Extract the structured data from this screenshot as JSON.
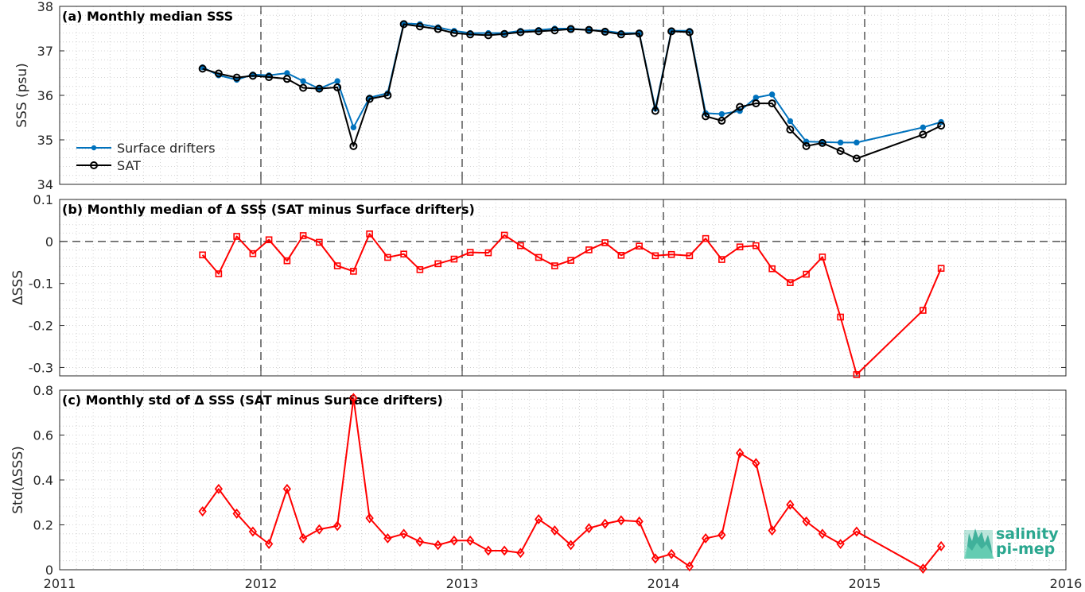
{
  "chart_data": [
    {
      "type": "line",
      "title": "(a) Monthly median SSS",
      "xlabel": "",
      "ylabel": "SSS (psu)",
      "xlim": [
        2011,
        2016
      ],
      "ylim": [
        34,
        38
      ],
      "yticks": [
        "34",
        "35",
        "36",
        "37",
        "38"
      ],
      "xticks": [
        "2011",
        "2012",
        "2013",
        "2014",
        "2015",
        "2016"
      ],
      "grid": "minor-dotted",
      "year_lines": [
        2012,
        2013,
        2014,
        2015
      ],
      "legend_position": "bottom-left",
      "series": [
        {
          "name": "Surface drifters",
          "color": "#0072BD",
          "marker": "dot",
          "x": [
            2011.71,
            2011.79,
            2011.88,
            2011.96,
            2012.04,
            2012.13,
            2012.21,
            2012.29,
            2012.38,
            2012.46,
            2012.54,
            2012.63,
            2012.71,
            2012.79,
            2012.88,
            2012.96,
            2013.04,
            2013.13,
            2013.21,
            2013.29,
            2013.38,
            2013.46,
            2013.54,
            2013.63,
            2013.71,
            2013.79,
            2013.88,
            2013.96,
            2014.04,
            2014.13,
            2014.21,
            2014.29,
            2014.38,
            2014.46,
            2014.54,
            2014.63,
            2014.71,
            2014.79,
            2014.88,
            2014.96,
            2015.29,
            2015.38
          ],
          "y": [
            36.63,
            36.45,
            36.35,
            36.47,
            36.45,
            36.5,
            36.32,
            36.15,
            36.32,
            35.28,
            35.95,
            36.05,
            37.62,
            37.6,
            37.53,
            37.45,
            37.4,
            37.4,
            37.4,
            37.45,
            37.47,
            37.5,
            37.5,
            37.47,
            37.45,
            37.4,
            37.4,
            35.7,
            37.45,
            37.45,
            35.6,
            35.58,
            35.65,
            35.95,
            36.02,
            35.42,
            34.96,
            34.95,
            34.94,
            34.94,
            35.28,
            35.4
          ],
          "gaps_after_index": [
            39
          ]
        },
        {
          "name": "SAT",
          "color": "#000000",
          "marker": "circle",
          "x": [
            2011.71,
            2011.79,
            2011.88,
            2011.96,
            2012.04,
            2012.13,
            2012.21,
            2012.29,
            2012.38,
            2012.46,
            2012.54,
            2012.63,
            2012.71,
            2012.79,
            2012.88,
            2012.96,
            2013.04,
            2013.13,
            2013.21,
            2013.29,
            2013.38,
            2013.46,
            2013.54,
            2013.63,
            2013.71,
            2013.79,
            2013.88,
            2013.96,
            2014.04,
            2014.13,
            2014.21,
            2014.29,
            2014.38,
            2014.46,
            2014.54,
            2014.63,
            2014.71,
            2014.79,
            2014.88,
            2014.96,
            2015.29,
            2015.38
          ],
          "y": [
            36.6,
            36.49,
            36.4,
            36.44,
            36.41,
            36.37,
            36.17,
            36.15,
            36.18,
            34.86,
            35.92,
            36.0,
            37.6,
            37.55,
            37.49,
            37.4,
            37.37,
            37.35,
            37.38,
            37.42,
            37.44,
            37.46,
            37.49,
            37.47,
            37.43,
            37.37,
            37.39,
            35.65,
            37.44,
            37.42,
            35.53,
            35.43,
            35.74,
            35.82,
            35.82,
            35.23,
            34.86,
            34.93,
            34.75,
            34.58,
            35.12,
            35.32
          ],
          "gaps_after_index": [
            39
          ]
        }
      ]
    },
    {
      "type": "line",
      "title": "(b) Monthly median of Δ SSS (SAT minus Surface drifters)",
      "xlabel": "",
      "ylabel": "ΔSSS",
      "xlim": [
        2011,
        2016
      ],
      "ylim": [
        -0.32,
        0.1
      ],
      "yticks": [
        "-0.3",
        "-0.2",
        "-0.1",
        "0",
        "0.1"
      ],
      "zero_line": true,
      "grid": "minor-dotted",
      "series": [
        {
          "name": "",
          "color": "#FF0000",
          "marker": "square",
          "x": [
            2011.71,
            2011.79,
            2011.88,
            2011.96,
            2012.04,
            2012.13,
            2012.21,
            2012.29,
            2012.38,
            2012.46,
            2012.54,
            2012.63,
            2012.71,
            2012.79,
            2012.88,
            2012.96,
            2013.04,
            2013.13,
            2013.21,
            2013.29,
            2013.38,
            2013.46,
            2013.54,
            2013.63,
            2013.71,
            2013.79,
            2013.88,
            2013.96,
            2014.04,
            2014.13,
            2014.21,
            2014.29,
            2014.38,
            2014.46,
            2014.54,
            2014.63,
            2014.71,
            2014.79,
            2014.88,
            2014.96,
            2015.29,
            2015.38
          ],
          "y": [
            -0.032,
            -0.077,
            0.012,
            -0.029,
            0.004,
            -0.046,
            0.014,
            -0.002,
            -0.058,
            -0.071,
            0.018,
            -0.038,
            -0.03,
            -0.067,
            -0.053,
            -0.042,
            -0.026,
            -0.027,
            0.015,
            -0.01,
            -0.038,
            -0.058,
            -0.045,
            -0.02,
            -0.003,
            -0.033,
            -0.011,
            -0.034,
            -0.031,
            -0.034,
            0.007,
            -0.043,
            -0.013,
            -0.01,
            -0.065,
            -0.098,
            -0.078,
            -0.037,
            -0.18,
            -0.317,
            -0.164,
            -0.064
          ],
          "gaps_after_index": []
        }
      ]
    },
    {
      "type": "line",
      "title": "(c) Monthly std of Δ SSS (SAT minus Surface drifters)",
      "xlabel": "",
      "ylabel": "Std(ΔSSS)",
      "xlim": [
        2011,
        2016
      ],
      "ylim": [
        0,
        0.8
      ],
      "yticks": [
        "0",
        "0.2",
        "0.4",
        "0.6",
        "0.8"
      ],
      "grid": "minor-dotted",
      "series": [
        {
          "name": "",
          "color": "#FF0000",
          "marker": "diamond",
          "x": [
            2011.71,
            2011.79,
            2011.88,
            2011.96,
            2012.04,
            2012.13,
            2012.21,
            2012.29,
            2012.38,
            2012.46,
            2012.54,
            2012.63,
            2012.71,
            2012.79,
            2012.88,
            2012.96,
            2013.04,
            2013.13,
            2013.21,
            2013.29,
            2013.38,
            2013.46,
            2013.54,
            2013.63,
            2013.71,
            2013.79,
            2013.88,
            2013.96,
            2014.04,
            2014.13,
            2014.21,
            2014.29,
            2014.38,
            2014.46,
            2014.54,
            2014.63,
            2014.71,
            2014.79,
            2014.88,
            2014.96,
            2015.29,
            2015.38
          ],
          "y": [
            0.26,
            0.36,
            0.25,
            0.17,
            0.115,
            0.36,
            0.14,
            0.18,
            0.195,
            0.765,
            0.23,
            0.14,
            0.16,
            0.125,
            0.11,
            0.13,
            0.13,
            0.085,
            0.085,
            0.075,
            0.225,
            0.175,
            0.11,
            0.185,
            0.205,
            0.22,
            0.215,
            0.05,
            0.07,
            0.015,
            0.14,
            0.155,
            0.52,
            0.475,
            0.175,
            0.29,
            0.215,
            0.16,
            0.115,
            0.17,
            0.005,
            0.105
          ],
          "gaps_after_index": []
        }
      ]
    }
  ],
  "logo": {
    "line1": "salinity",
    "line2": "pi-mep",
    "color": "#2aa78f"
  }
}
